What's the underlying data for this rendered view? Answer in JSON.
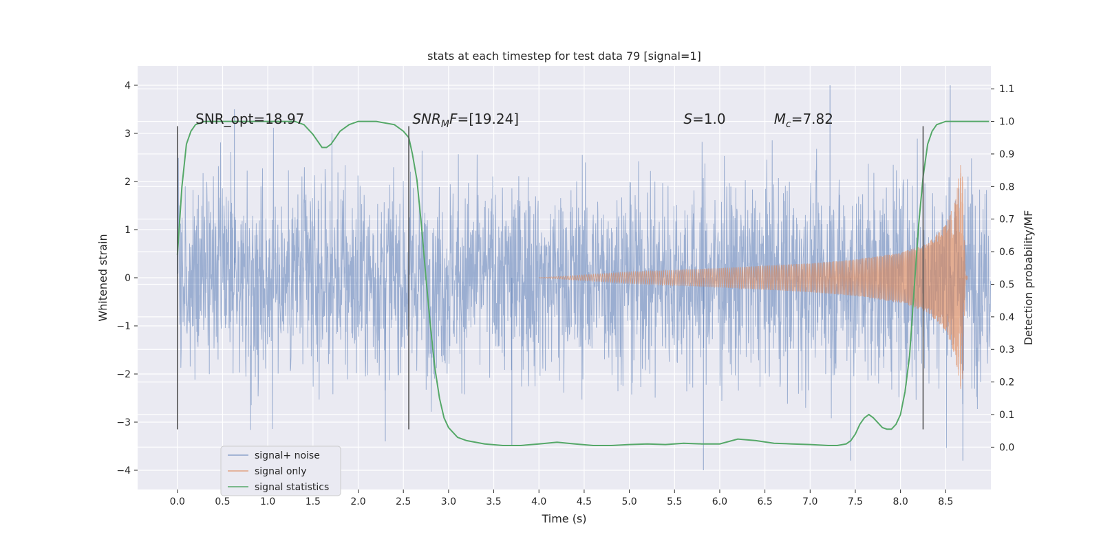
{
  "colors": {
    "background": "#eaeaf2",
    "grid": "#ffffff",
    "signal_noise": "#4c72b0",
    "signal_only": "#dd8452",
    "signal_statistics": "#55a868",
    "marker_lines": "#555555"
  },
  "chart_data": {
    "type": "line",
    "title": "stats at each timestep for test data 79 [signal=1]",
    "xlabel": "Time (s)",
    "ylabel": "Whitened strain",
    "ylabel_right": "Detection probability/MF",
    "xlim": [
      -0.44,
      9.0
    ],
    "ylim": [
      -4.4,
      4.4
    ],
    "ylim_right": [
      -0.13,
      1.17
    ],
    "x_ticks": [
      0.0,
      0.5,
      1.0,
      1.5,
      2.0,
      2.5,
      3.0,
      3.5,
      4.0,
      4.5,
      5.0,
      5.5,
      6.0,
      6.5,
      7.0,
      7.5,
      8.0,
      8.5
    ],
    "x_tick_labels": [
      "0.0",
      "0.5",
      "1.0",
      "1.5",
      "2.0",
      "2.5",
      "3.0",
      "3.5",
      "4.0",
      "4.5",
      "5.0",
      "5.5",
      "6.0",
      "6.5",
      "7.0",
      "7.5",
      "8.0",
      "8.5"
    ],
    "y_ticks": [
      -4,
      -3,
      -2,
      -1,
      0,
      1,
      2,
      3,
      4
    ],
    "y_tick_labels": [
      "−4",
      "−3",
      "−2",
      "−1",
      "0",
      "1",
      "2",
      "3",
      "4"
    ],
    "y_right_ticks": [
      0.0,
      0.1,
      0.2,
      0.3,
      0.4,
      0.5,
      0.6,
      0.7,
      0.8,
      0.9,
      1.0,
      1.1
    ],
    "y_right_tick_labels": [
      "0.0",
      "0.1",
      "0.2",
      "0.3",
      "0.4",
      "0.5",
      "0.6",
      "0.7",
      "0.8",
      "0.9",
      "1.0",
      "1.1"
    ],
    "grid": true,
    "legend_position": "bottom-left",
    "series": [
      {
        "name": "signal+ noise",
        "axis": "left",
        "description": "dense whitened strain time series, 0.0–9.0 s",
        "envelope": {
          "x": [
            0.0,
            1.0,
            2.0,
            3.0,
            4.0,
            5.0,
            6.0,
            7.0,
            8.0,
            8.5,
            8.7,
            9.0
          ],
          "upper": [
            2.3,
            2.7,
            2.8,
            2.6,
            2.6,
            2.6,
            2.7,
            2.7,
            2.8,
            2.9,
            2.6,
            2.2
          ],
          "lower": [
            -2.4,
            -2.7,
            -2.7,
            -2.6,
            -2.6,
            -2.6,
            -2.7,
            -2.7,
            -2.8,
            -3.0,
            -3.2,
            -2.3
          ]
        },
        "notable_peaks": [
          {
            "x": 0.63,
            "y": 3.5
          },
          {
            "x": 2.3,
            "y": -3.4
          },
          {
            "x": 3.7,
            "y": -3.5
          },
          {
            "x": 5.82,
            "y": -4.0
          },
          {
            "x": 7.22,
            "y": 4.0
          },
          {
            "x": 7.45,
            "y": -3.8
          },
          {
            "x": 8.55,
            "y": 4.0
          },
          {
            "x": 8.69,
            "y": -3.8
          }
        ]
      },
      {
        "name": "signal only",
        "axis": "left",
        "description": "chirp signal whose amplitude grows toward merger near 8.68 s",
        "envelope": {
          "x": [
            4.0,
            5.0,
            6.0,
            7.0,
            7.5,
            8.0,
            8.3,
            8.5,
            8.6,
            8.65,
            8.68,
            8.72,
            9.0
          ],
          "amplitude": [
            0.0,
            0.12,
            0.2,
            0.3,
            0.38,
            0.52,
            0.72,
            1.1,
            1.6,
            2.2,
            2.5,
            0.05,
            0.0
          ]
        }
      },
      {
        "name": "signal statistics",
        "axis": "right",
        "x": [
          0.0,
          0.05,
          0.1,
          0.15,
          0.2,
          0.3,
          0.5,
          1.0,
          1.3,
          1.4,
          1.5,
          1.6,
          1.65,
          1.7,
          1.8,
          1.9,
          2.0,
          2.2,
          2.4,
          2.5,
          2.56,
          2.6,
          2.65,
          2.7,
          2.75,
          2.8,
          2.85,
          2.9,
          2.95,
          3.0,
          3.1,
          3.2,
          3.4,
          3.6,
          3.8,
          4.0,
          4.2,
          4.4,
          4.6,
          4.8,
          5.0,
          5.2,
          5.4,
          5.6,
          5.8,
          6.0,
          6.2,
          6.4,
          6.6,
          6.8,
          7.0,
          7.2,
          7.3,
          7.4,
          7.45,
          7.5,
          7.55,
          7.6,
          7.65,
          7.7,
          7.75,
          7.8,
          7.85,
          7.9,
          7.95,
          8.0,
          8.05,
          8.1,
          8.15,
          8.2,
          8.25,
          8.3,
          8.35,
          8.4,
          8.5,
          8.6,
          8.8,
          8.98
        ],
        "values": [
          0.59,
          0.8,
          0.93,
          0.97,
          0.99,
          1.0,
          1.0,
          1.0,
          1.0,
          0.99,
          0.96,
          0.92,
          0.92,
          0.93,
          0.97,
          0.99,
          1.0,
          1.0,
          0.99,
          0.97,
          0.95,
          0.9,
          0.82,
          0.68,
          0.52,
          0.37,
          0.24,
          0.15,
          0.09,
          0.06,
          0.03,
          0.02,
          0.01,
          0.005,
          0.005,
          0.01,
          0.015,
          0.01,
          0.005,
          0.005,
          0.008,
          0.01,
          0.008,
          0.012,
          0.01,
          0.01,
          0.025,
          0.02,
          0.012,
          0.01,
          0.008,
          0.005,
          0.005,
          0.01,
          0.02,
          0.04,
          0.07,
          0.09,
          0.1,
          0.09,
          0.075,
          0.06,
          0.055,
          0.055,
          0.07,
          0.1,
          0.17,
          0.28,
          0.48,
          0.68,
          0.83,
          0.93,
          0.97,
          0.99,
          1.0,
          1.0,
          1.0,
          1.0
        ]
      }
    ],
    "vertical_markers": [
      {
        "x": 0.0,
        "y_from": -3.15,
        "y_to": 3.15
      },
      {
        "x": 2.56,
        "y_from": -3.15,
        "y_to": 3.15
      },
      {
        "x": 8.25,
        "y_from": -3.15,
        "y_to": 3.15
      }
    ],
    "annotations": [
      {
        "id": "snr-opt",
        "text": "SNR_opt=18.97",
        "x": 0.2,
        "y": 3.2
      },
      {
        "id": "snr-mf",
        "main": "SNR",
        "sub": "M",
        "rest": "F=[19.24]",
        "x": 2.6,
        "y": 3.2
      },
      {
        "id": "s-value",
        "italic": "S",
        "rest": "=1.0",
        "x": 5.6,
        "y": 3.2
      },
      {
        "id": "mc-value",
        "italic": "M",
        "sub": "c",
        "rest": "=7.82",
        "x": 6.6,
        "y": 3.2
      }
    ]
  }
}
